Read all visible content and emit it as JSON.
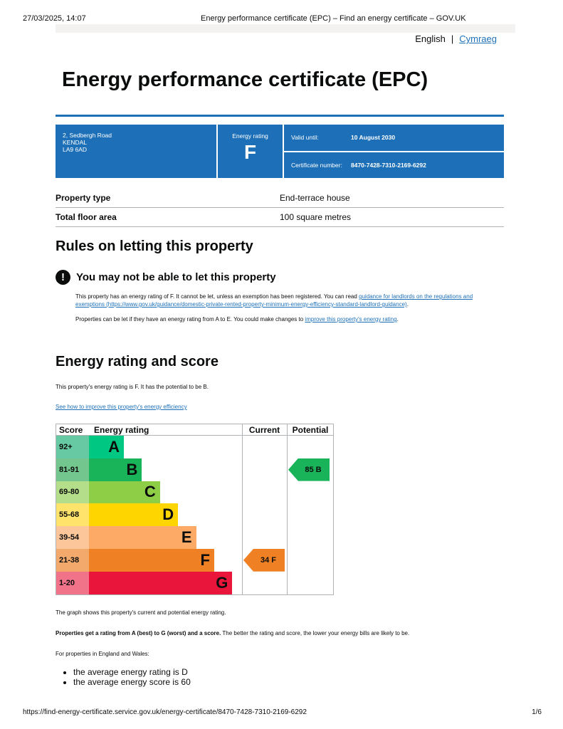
{
  "browser": {
    "datetime": "27/03/2025, 14:07",
    "title": "Energy performance certificate (EPC) – Find an energy certificate – GOV.UK",
    "url": "https://find-energy-certificate.service.gov.uk/energy-certificate/8470-7428-7310-2169-6292",
    "page": "1/6"
  },
  "lang": {
    "english": "English",
    "welsh": "Cymraeg"
  },
  "title": "Energy performance certificate (EPC)",
  "panel": {
    "address": [
      "2, Sedbergh Road",
      "KENDAL",
      "LA9 6AD"
    ],
    "rating_label": "Energy rating",
    "rating": "F",
    "valid_label": "Valid until:",
    "valid": "10 August 2030",
    "cert_label": "Certificate number:",
    "cert": "8470-7428-7310-2169-6292"
  },
  "summary": [
    {
      "k": "Property type",
      "v": "End-terrace house"
    },
    {
      "k": "Total floor area",
      "v": "100 square metres"
    }
  ],
  "rules": {
    "heading": "Rules on letting this property",
    "warning": "You may not be able to let this property",
    "p1": "This property has an energy rating of F. It cannot be let, unless an exemption has been registered. You can read ",
    "p1_link": "guidance for landlords on the regulations and exemptions (https://www.gov.uk/guidance/domestic-private-rented-property-minimum-energy-efficiency-standard-landlord-guidance)",
    "p2": "Properties can be let if they have an energy rating from A to E. You could make changes to ",
    "p2_link": "improve this property's energy rating"
  },
  "score": {
    "heading": "Energy rating and score",
    "intro": "This property's energy rating is F. It has the potential to be B.",
    "link": "See how to improve this property's energy efficiency",
    "graph_note": "The graph shows this property's current and potential energy rating.",
    "bold": "Properties get a rating from A (best) to G (worst) and a score.",
    "rest": " The better the rating and score, the lower your energy bills are likely to be.",
    "ew": "For properties in England and Wales:",
    "bullets": [
      "the average energy rating is D",
      "the average energy score is 60"
    ]
  },
  "chart_data": {
    "type": "bar",
    "headers": [
      "Score",
      "Energy rating",
      "Current",
      "Potential"
    ],
    "bands": [
      {
        "letter": "A",
        "range": "92+",
        "color": "#00c781",
        "light": "#67c9a3"
      },
      {
        "letter": "B",
        "range": "81-91",
        "color": "#19b459",
        "light": "#74c68f"
      },
      {
        "letter": "C",
        "range": "69-80",
        "color": "#8dce46",
        "light": "#b5de8a"
      },
      {
        "letter": "D",
        "range": "55-68",
        "color": "#ffd500",
        "light": "#ffe36b"
      },
      {
        "letter": "E",
        "range": "39-54",
        "color": "#fcaa65",
        "light": "#fdc69a"
      },
      {
        "letter": "F",
        "range": "21-38",
        "color": "#ef8023",
        "light": "#f4a96c"
      },
      {
        "letter": "G",
        "range": "1-20",
        "color": "#e9153b",
        "light": "#f1738a"
      }
    ],
    "current": {
      "score": 34,
      "letter": "F",
      "label": "34  F"
    },
    "potential": {
      "score": 85,
      "letter": "B",
      "label": "85  B"
    }
  }
}
